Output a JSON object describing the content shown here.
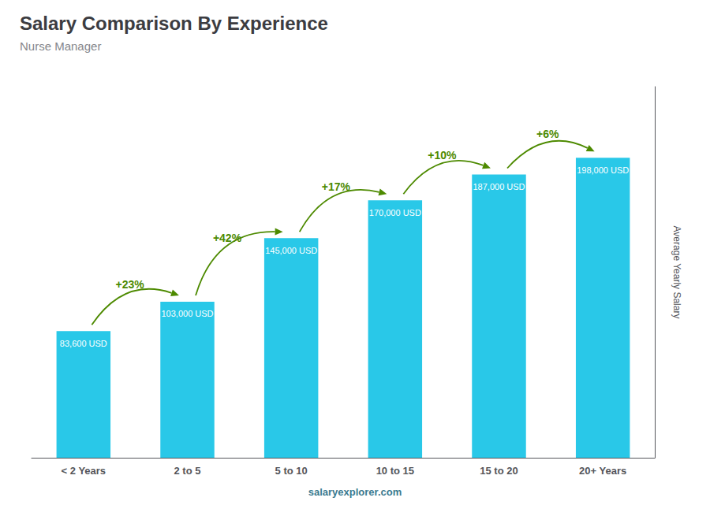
{
  "chart_data": {
    "type": "bar",
    "title": "Salary Comparison By Experience",
    "subtitle": "Nurse Manager",
    "ylabel": "Average Yearly Salary",
    "categories": [
      "< 2 Years",
      "2 to 5",
      "5 to 10",
      "10 to 15",
      "15 to 20",
      "20+ Years"
    ],
    "values": [
      83600,
      103000,
      145000,
      170000,
      187000,
      198000
    ],
    "value_labels": [
      "83,600 USD",
      "103,000 USD",
      "145,000 USD",
      "170,000 USD",
      "187,000 USD",
      "198,000 USD"
    ],
    "data_labels": true,
    "annotations": [
      "+23%",
      "+42%",
      "+17%",
      "+10%",
      "+6%"
    ],
    "footer": "salaryexplorer.com",
    "color": "#29C8E8",
    "ylim": [
      0,
      245000
    ],
    "yticks": [],
    "tick_labels": "x",
    "grid": false
  }
}
